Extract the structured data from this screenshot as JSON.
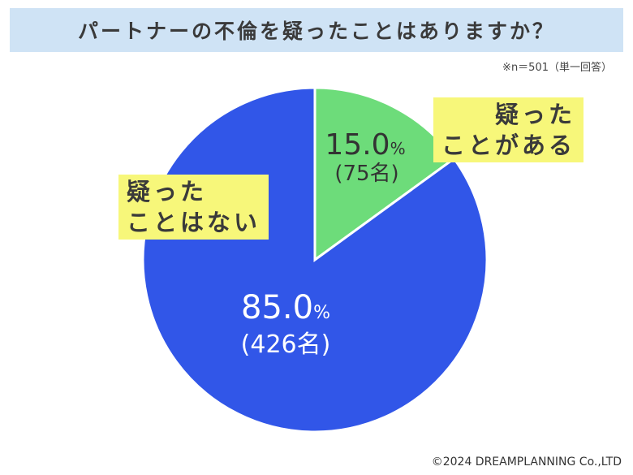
{
  "title": "パートナーの不倫を疑ったことはありますか？",
  "note": "※n＝501（単一回答）",
  "credit": "©2024 DREAMPLANNING Co.,LTD",
  "colors": {
    "title_bg": "#cfe3f5",
    "label_bg": "#f7f77a"
  },
  "chart_data": {
    "type": "pie",
    "total_n": 501,
    "slices": [
      {
        "label_line1": "疑った",
        "label_line2": "ことがある",
        "percent": 15.0,
        "percent_text": "15.0",
        "count_text": "(75名)",
        "color": "#6ddc7a"
      },
      {
        "label_line1": "疑った",
        "label_line2": "ことはない",
        "percent": 85.0,
        "percent_text": "85.0",
        "count_text": "(426名)",
        "color": "#3156e8"
      }
    ],
    "unit": "%"
  }
}
